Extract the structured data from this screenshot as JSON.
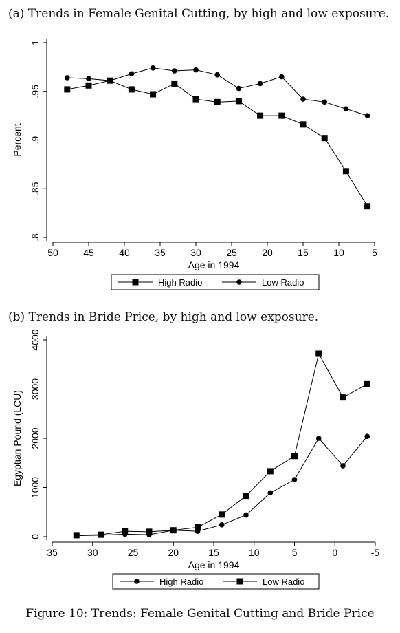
{
  "panel_a": {
    "title": "(a) Trends in Female Genital Cutting, by high and low exposure."
  },
  "panel_b": {
    "title": "(b) Trends in Bride Price, by high and low exposure."
  },
  "caption": "Figure 10: Trends: Female Genital Cutting and Bride Price",
  "colors": {
    "line": "#000000",
    "axis": "#000000",
    "background": "#ffffff"
  },
  "chart_data": [
    {
      "type": "line",
      "title": "(a) Trends in Female Genital Cutting, by high and low exposure.",
      "xlabel": "Age in 1994",
      "ylabel": "Percent",
      "xlim": [
        50,
        5
      ],
      "ylim": [
        0.8,
        1.0
      ],
      "x_ticks": [
        "50",
        "45",
        "40",
        "35",
        "30",
        "25",
        "20",
        "15",
        "10",
        "5"
      ],
      "y_ticks": [
        ".8",
        ".85",
        ".9",
        ".95",
        "1"
      ],
      "legend_position": "bottom",
      "x": [
        48,
        45,
        42,
        39,
        36,
        33,
        30,
        27,
        24,
        21,
        18,
        15,
        12,
        9,
        6
      ],
      "series": [
        {
          "name": "High Radio",
          "marker": "square",
          "values": [
            0.952,
            0.956,
            0.961,
            0.952,
            0.947,
            0.958,
            0.942,
            0.939,
            0.94,
            0.925,
            0.925,
            0.916,
            0.902,
            0.868,
            0.832
          ]
        },
        {
          "name": "Low Radio",
          "marker": "circle",
          "values": [
            0.964,
            0.963,
            0.961,
            0.968,
            0.974,
            0.971,
            0.972,
            0.967,
            0.953,
            0.958,
            0.965,
            0.942,
            0.939,
            0.932,
            0.925
          ]
        }
      ]
    },
    {
      "type": "line",
      "title": "(b) Trends in Bride Price, by high and low exposure.",
      "xlabel": "Age in 1994",
      "ylabel": "Egyptian Pound (LCU)",
      "xlim": [
        35,
        -5
      ],
      "ylim": [
        0,
        4000
      ],
      "x_ticks": [
        "35",
        "30",
        "25",
        "20",
        "15",
        "10",
        "5",
        "0",
        "-5"
      ],
      "y_ticks": [
        "0",
        "1000",
        "2000",
        "3000",
        "4000"
      ],
      "legend_position": "bottom",
      "x": [
        32,
        29,
        26,
        23,
        20,
        17,
        14,
        11,
        8,
        5,
        2,
        -1,
        -4
      ],
      "series": [
        {
          "name": "High Radio",
          "marker": "circle",
          "values": [
            20,
            30,
            50,
            40,
            130,
            110,
            240,
            440,
            890,
            1160,
            2000,
            1440,
            2040
          ]
        },
        {
          "name": "Low Radio",
          "marker": "square",
          "values": [
            30,
            40,
            110,
            100,
            130,
            190,
            450,
            830,
            1330,
            1640,
            3720,
            2830,
            3100
          ]
        }
      ]
    }
  ]
}
